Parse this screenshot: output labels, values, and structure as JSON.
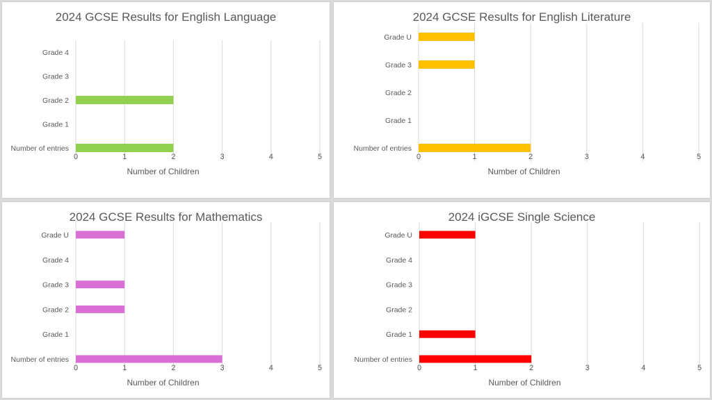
{
  "chart_data": [
    {
      "type": "bar",
      "orientation": "horizontal",
      "title": "2024 GCSE Results for English Language",
      "xlabel": "Number of Children",
      "ylabel": "",
      "categories": [
        "Number of entries",
        "Grade 1",
        "Grade 2",
        "Grade 3",
        "Grade 4"
      ],
      "values": [
        2,
        0,
        2,
        0,
        0
      ],
      "xlim": [
        0,
        5
      ],
      "ticks": [
        "0",
        "1",
        "2",
        "3",
        "4",
        "5"
      ],
      "color": "#92d050",
      "grid": true,
      "legend": "none"
    },
    {
      "type": "bar",
      "orientation": "horizontal",
      "title": "2024 GCSE Results for English Literature",
      "xlabel": "Number of Children",
      "ylabel": "",
      "categories": [
        "Number of entries",
        "Grade 1",
        "Grade 2",
        "Grade 3",
        "Grade U"
      ],
      "values": [
        2,
        0,
        0,
        1,
        1
      ],
      "xlim": [
        0,
        5
      ],
      "ticks": [
        "0",
        "1",
        "2",
        "3",
        "4",
        "5"
      ],
      "color": "#ffc000",
      "grid": true,
      "legend": "none"
    },
    {
      "type": "bar",
      "orientation": "horizontal",
      "title": "2024 GCSE Results for Mathematics",
      "xlabel": "Number of Children",
      "ylabel": "",
      "categories": [
        "Number of entries",
        "Grade 1",
        "Grade 2",
        "Grade 3",
        "Grade 4",
        "Grade U"
      ],
      "values": [
        3,
        0,
        1,
        1,
        0,
        1
      ],
      "xlim": [
        0,
        5
      ],
      "ticks": [
        "0",
        "1",
        "2",
        "3",
        "4",
        "5"
      ],
      "color": "#da70d6",
      "grid": true,
      "legend": "none"
    },
    {
      "type": "bar",
      "orientation": "horizontal",
      "title": "2024 iGCSE Single Science",
      "xlabel": "Number of Children",
      "ylabel": "",
      "categories": [
        "Number of entries",
        "Grade 1",
        "Grade 2",
        "Grade 3",
        "Grade 4",
        "Grade U"
      ],
      "values": [
        2,
        1,
        0,
        0,
        0,
        1
      ],
      "xlim": [
        0,
        5
      ],
      "ticks": [
        "0",
        "1",
        "2",
        "3",
        "4",
        "5"
      ],
      "color": "#ff0000",
      "grid": true,
      "legend": "none"
    }
  ]
}
